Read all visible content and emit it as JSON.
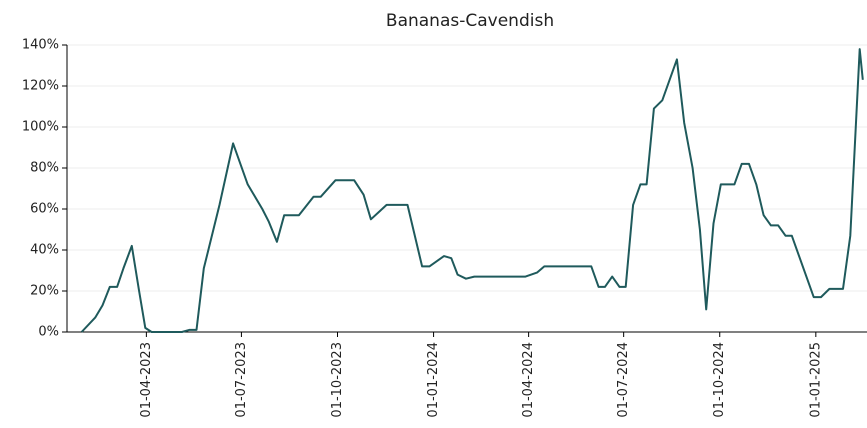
{
  "chart_data": {
    "type": "line",
    "title": "Bananas-Cavendish",
    "x": [
      "2023-01-29",
      "2023-02-11",
      "2023-02-18",
      "2023-02-25",
      "2023-03-04",
      "2023-03-10",
      "2023-03-18",
      "2023-03-25",
      "2023-03-31",
      "2023-04-06",
      "2023-04-14",
      "2023-04-28",
      "2023-05-05",
      "2023-05-12",
      "2023-05-19",
      "2023-05-26",
      "2023-06-10",
      "2023-06-23",
      "2023-07-07",
      "2023-07-21",
      "2023-07-27",
      "2023-08-04",
      "2023-08-11",
      "2023-08-25",
      "2023-09-08",
      "2023-09-15",
      "2023-09-29",
      "2023-10-17",
      "2023-10-26",
      "2023-11-02",
      "2023-11-17",
      "2023-12-07",
      "2023-12-21",
      "2023-12-28",
      "2024-01-11",
      "2024-01-18",
      "2024-01-24",
      "2024-02-01",
      "2024-02-09",
      "2024-03-29",
      "2024-04-09",
      "2024-04-16",
      "2024-05-31",
      "2024-06-07",
      "2024-06-13",
      "2024-06-20",
      "2024-06-27",
      "2024-07-03",
      "2024-07-10",
      "2024-07-17",
      "2024-07-23",
      "2024-07-30",
      "2024-08-07",
      "2024-08-21",
      "2024-08-28",
      "2024-09-05",
      "2024-09-12",
      "2024-09-18",
      "2024-09-25",
      "2024-10-02",
      "2024-10-15",
      "2024-10-22",
      "2024-10-29",
      "2024-11-05",
      "2024-11-12",
      "2024-11-19",
      "2024-11-26",
      "2024-12-03",
      "2024-12-09",
      "2024-12-30",
      "2025-01-06",
      "2025-01-14",
      "2025-01-27",
      "2025-02-03",
      "2025-02-12",
      "2025-02-15"
    ],
    "series": [
      {
        "color": "#1f5a5c",
        "values": [
          0,
          7,
          13,
          22,
          22,
          31,
          42,
          20,
          2,
          0,
          0,
          0,
          0,
          1,
          1,
          31,
          62,
          92,
          72,
          60,
          54,
          44,
          57,
          57,
          66,
          66,
          74,
          74,
          67,
          55,
          62,
          62,
          32,
          32,
          37,
          36,
          28,
          26,
          27,
          27,
          29,
          32,
          32,
          22,
          22,
          27,
          22,
          22,
          62,
          72,
          72,
          109,
          113,
          133,
          102,
          80,
          50,
          11,
          53,
          72,
          72,
          82,
          82,
          72,
          57,
          52,
          52,
          47,
          47,
          17,
          17,
          21,
          21,
          47,
          138,
          123
        ]
      }
    ],
    "xlim": [
      "2023-01-15",
      "2025-02-19"
    ],
    "xticks": [
      {
        "value": "2023-04-01",
        "label": "01-04-2023"
      },
      {
        "value": "2023-07-01",
        "label": "01-07-2023"
      },
      {
        "value": "2023-10-01",
        "label": "01-10-2023"
      },
      {
        "value": "2024-01-01",
        "label": "01-01-2024"
      },
      {
        "value": "2024-04-01",
        "label": "01-04-2024"
      },
      {
        "value": "2024-07-01",
        "label": "01-07-2024"
      },
      {
        "value": "2024-10-01",
        "label": "01-10-2024"
      },
      {
        "value": "2025-01-01",
        "label": "01-01-2025"
      }
    ],
    "ylim": [
      0,
      140
    ],
    "yticks": [
      {
        "value": 0,
        "label": "0%"
      },
      {
        "value": 20,
        "label": "20%"
      },
      {
        "value": 40,
        "label": "40%"
      },
      {
        "value": 60,
        "label": "60%"
      },
      {
        "value": 80,
        "label": "80%"
      },
      {
        "value": 100,
        "label": "100%"
      },
      {
        "value": 120,
        "label": "120%"
      },
      {
        "value": 140,
        "label": "140%"
      }
    ],
    "grid": true
  }
}
